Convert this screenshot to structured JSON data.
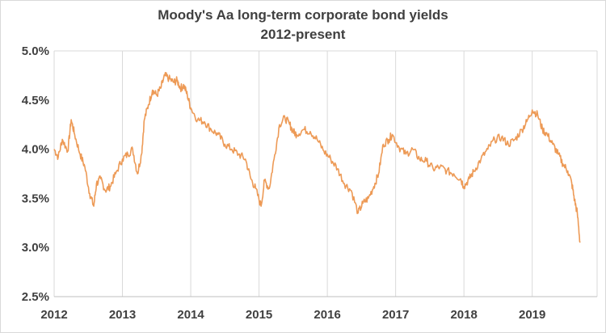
{
  "chart_data": {
    "type": "line",
    "title": "Moody's Aa long-term corporate bond yields",
    "subtitle": "2012-present",
    "xlabel": "",
    "ylabel": "",
    "ylim": [
      2.5,
      5.0
    ],
    "xlim": [
      2012.0,
      2019.95
    ],
    "y_ticks": [
      "2.5%",
      "3.0%",
      "3.5%",
      "4.0%",
      "4.5%",
      "5.0%"
    ],
    "x_ticks": [
      "2012",
      "2013",
      "2014",
      "2015",
      "2016",
      "2017",
      "2018",
      "2019"
    ],
    "grid": "vertical",
    "legend": "none",
    "line_color": "#ED9A56",
    "series": [
      {
        "x": [
          2012.0,
          2012.06,
          2012.12,
          2012.2,
          2012.25,
          2012.3,
          2012.38,
          2012.45,
          2012.52,
          2012.58,
          2012.62,
          2012.68,
          2012.75,
          2012.82,
          2012.9,
          2013.0,
          2013.08,
          2013.15,
          2013.22,
          2013.28,
          2013.32,
          2013.38,
          2013.44,
          2013.5,
          2013.56,
          2013.62,
          2013.68,
          2013.75,
          2013.8,
          2013.85,
          2013.9,
          2013.95,
          2014.0,
          2014.1,
          2014.2,
          2014.3,
          2014.4,
          2014.5,
          2014.6,
          2014.7,
          2014.8,
          2014.88,
          2014.95,
          2015.03,
          2015.08,
          2015.15,
          2015.22,
          2015.3,
          2015.38,
          2015.45,
          2015.5,
          2015.55,
          2015.65,
          2015.75,
          2015.85,
          2015.95,
          2016.05,
          2016.15,
          2016.25,
          2016.35,
          2016.45,
          2016.52,
          2016.6,
          2016.68,
          2016.75,
          2016.82,
          2016.9,
          2016.95,
          2017.05,
          2017.15,
          2017.25,
          2017.35,
          2017.45,
          2017.55,
          2017.65,
          2017.75,
          2017.85,
          2017.95,
          2018.0,
          2018.08,
          2018.15,
          2018.25,
          2018.35,
          2018.45,
          2018.55,
          2018.65,
          2018.75,
          2018.85,
          2018.92,
          2019.0,
          2019.08,
          2019.15,
          2019.22,
          2019.3,
          2019.38,
          2019.45,
          2019.52,
          2019.58,
          2019.62,
          2019.66,
          2019.7
        ],
        "values": [
          4.0,
          3.92,
          4.1,
          3.98,
          4.3,
          4.15,
          3.95,
          3.82,
          3.55,
          3.42,
          3.65,
          3.7,
          3.58,
          3.62,
          3.75,
          3.9,
          3.95,
          4.0,
          3.75,
          3.95,
          4.3,
          4.45,
          4.6,
          4.55,
          4.62,
          4.75,
          4.72,
          4.68,
          4.7,
          4.62,
          4.65,
          4.55,
          4.42,
          4.3,
          4.28,
          4.2,
          4.15,
          4.05,
          4.0,
          3.95,
          3.9,
          3.7,
          3.6,
          3.42,
          3.68,
          3.6,
          3.9,
          4.25,
          4.32,
          4.25,
          4.18,
          4.15,
          4.2,
          4.18,
          4.1,
          3.98,
          3.9,
          3.8,
          3.65,
          3.58,
          3.35,
          3.45,
          3.5,
          3.62,
          3.75,
          4.05,
          4.1,
          4.15,
          4.02,
          3.95,
          4.0,
          3.9,
          3.88,
          3.8,
          3.82,
          3.78,
          3.75,
          3.7,
          3.62,
          3.7,
          3.78,
          3.9,
          4.0,
          4.1,
          4.12,
          4.05,
          4.1,
          4.2,
          4.28,
          4.4,
          4.35,
          4.2,
          4.15,
          4.05,
          3.95,
          3.85,
          3.78,
          3.65,
          3.48,
          3.35,
          3.05
        ]
      }
    ]
  }
}
